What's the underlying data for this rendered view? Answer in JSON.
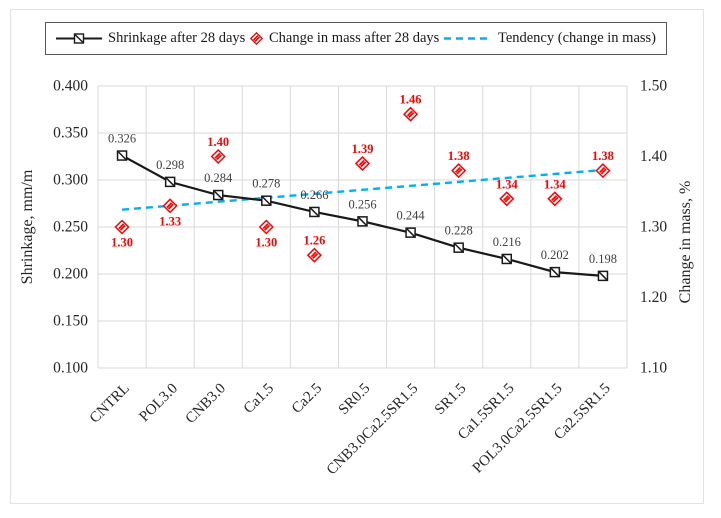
{
  "figure": {
    "legend": [
      {
        "label": "Shrinkage after 28 days",
        "marker": "square-slash-line",
        "color": "#1a1a1a"
      },
      {
        "label": "Change in mass after 28 days",
        "marker": "striped-diamond",
        "color": "#ff0000"
      },
      {
        "label": "Tendency (change in mass)",
        "marker": "dashed-line",
        "color": "#00b0f0"
      }
    ]
  },
  "chart_data": {
    "type": "line",
    "categories": [
      "CNTRL",
      "POL3.0",
      "CNB3.0",
      "Ca1.5",
      "Ca2.5",
      "SR0.5",
      "CNB3.0Ca2.5SR1.5",
      "SR1.5",
      "Ca1.5SR1.5",
      "POL3.0Ca2.5SR1.5",
      "Ca2.5SR1.5"
    ],
    "series": [
      {
        "name": "Shrinkage after 28 days",
        "type": "line",
        "axis": "left",
        "color": "#1a1a1a",
        "marker": "square-slash",
        "values": [
          0.326,
          0.298,
          0.284,
          0.278,
          0.266,
          0.256,
          0.244,
          0.228,
          0.216,
          0.202,
          0.198
        ],
        "labels": [
          "0.326",
          "0.298",
          "0.284",
          "0.278",
          "0.266",
          "0.256",
          "0.244",
          "0.228",
          "0.216",
          "0.202",
          "0.198"
        ]
      },
      {
        "name": "Change in mass after 28 days",
        "type": "scatter",
        "axis": "right",
        "color": "#ff0000",
        "marker": "striped-diamond",
        "values": [
          1.3,
          1.33,
          1.4,
          1.3,
          1.26,
          1.39,
          1.46,
          1.38,
          1.34,
          1.34,
          1.38
        ],
        "labels": [
          "1.30",
          "1.33",
          "1.40",
          "1.30",
          "1.26",
          "1.39",
          "1.46",
          "1.38",
          "1.34",
          "1.34",
          "1.38"
        ],
        "label_positions": [
          "below",
          "below",
          "above",
          "below",
          "above",
          "above",
          "above",
          "above",
          "above",
          "above",
          "above"
        ]
      },
      {
        "name": "Tendency (change in mass)",
        "type": "trendline",
        "of": "Change in mass after 28 days",
        "axis": "right",
        "color": "#00b0f0",
        "style": "dashed"
      }
    ],
    "axes": {
      "left": {
        "title": "Shrinkage, mm/m",
        "min": 0.1,
        "max": 0.4,
        "step": 0.05,
        "tick_labels": [
          "0.400",
          "0.350",
          "0.300",
          "0.250",
          "0.200",
          "0.150",
          "0.100"
        ]
      },
      "right": {
        "title": "Change in mass, %",
        "min": 1.1,
        "max": 1.5,
        "step": 0.1,
        "tick_labels": [
          "1.50",
          "1.40",
          "1.30",
          "1.20",
          "1.10"
        ]
      }
    },
    "grid": true,
    "legend_position": "top",
    "x_tick_rotation_deg": 45
  },
  "colors": {
    "grid": "#d9d9d9",
    "frame_border": "#e2e2e2",
    "legend_border": "#595959",
    "tick_text": "#262626",
    "shrinkage_label_text": "#404040",
    "series_black": "#1a1a1a",
    "series_red": "#ff0000",
    "series_blue": "#00b0f0"
  }
}
